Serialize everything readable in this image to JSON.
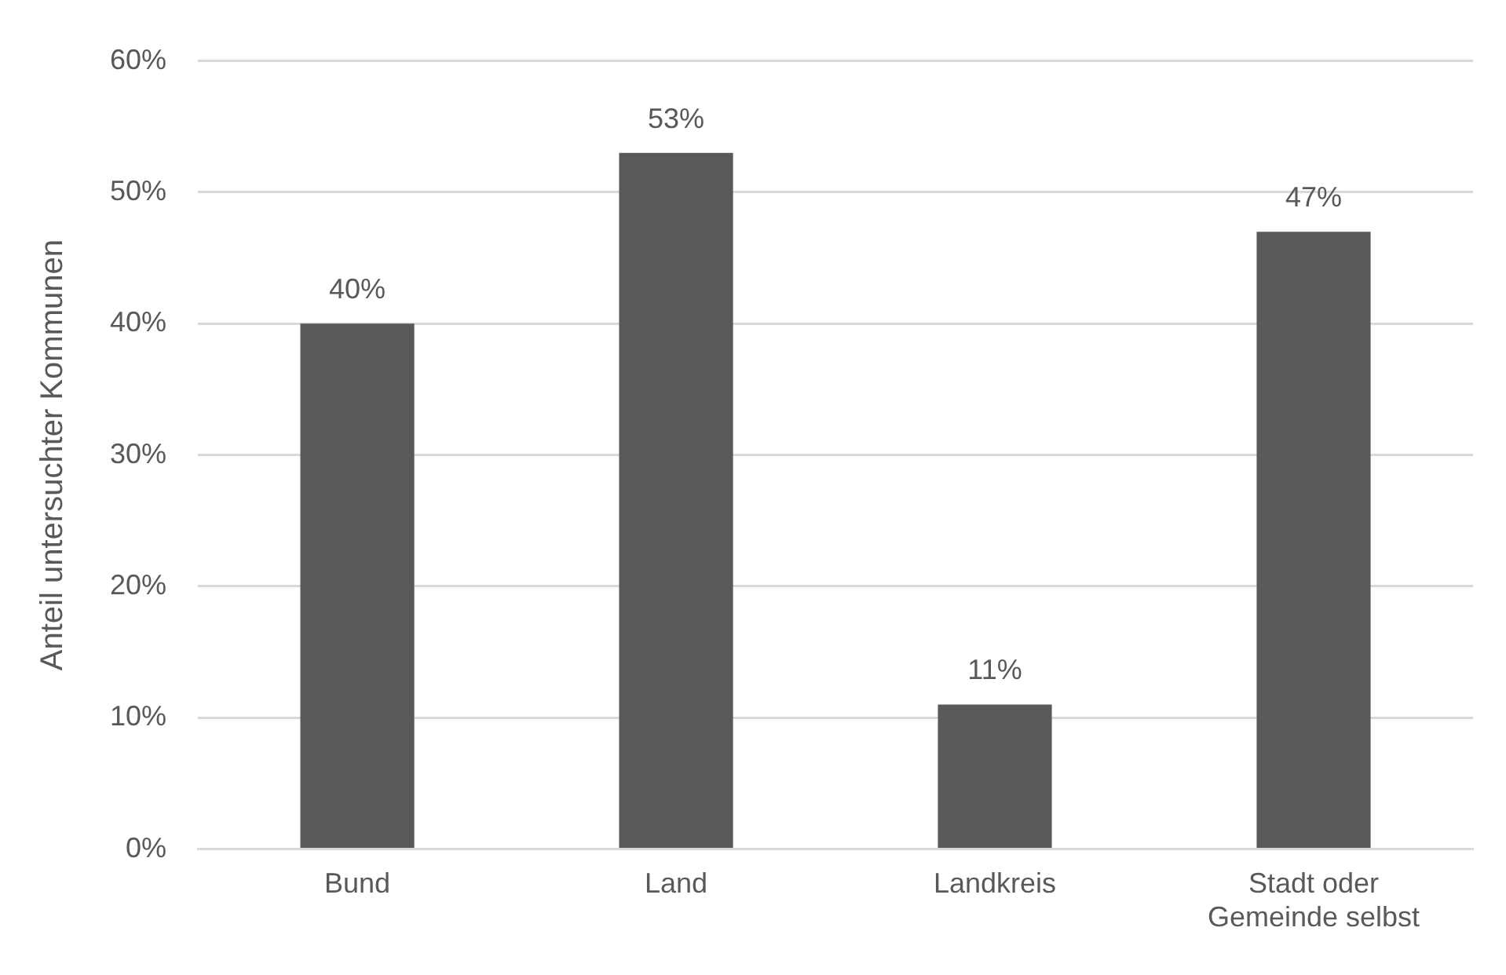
{
  "chart_data": {
    "type": "bar",
    "ylabel": "Anteil untersuchter Kommunen",
    "categories": [
      "Bund",
      "Land",
      "Landkreis",
      "Stadt oder Gemeinde selbst"
    ],
    "values": [
      40,
      53,
      11,
      47
    ],
    "color": "#595959",
    "value_labels": [
      "40%",
      "53%",
      "11%",
      "47%"
    ],
    "ylim": [
      0,
      60
    ],
    "yticks": [
      {
        "value": 0,
        "label": "0%"
      },
      {
        "value": 10,
        "label": "10%"
      },
      {
        "value": 20,
        "label": "20%"
      },
      {
        "value": 30,
        "label": "30%"
      },
      {
        "value": 40,
        "label": "40%"
      },
      {
        "value": 50,
        "label": "50%"
      },
      {
        "value": 60,
        "label": "60%"
      }
    ],
    "grid": "y",
    "legend": false
  }
}
